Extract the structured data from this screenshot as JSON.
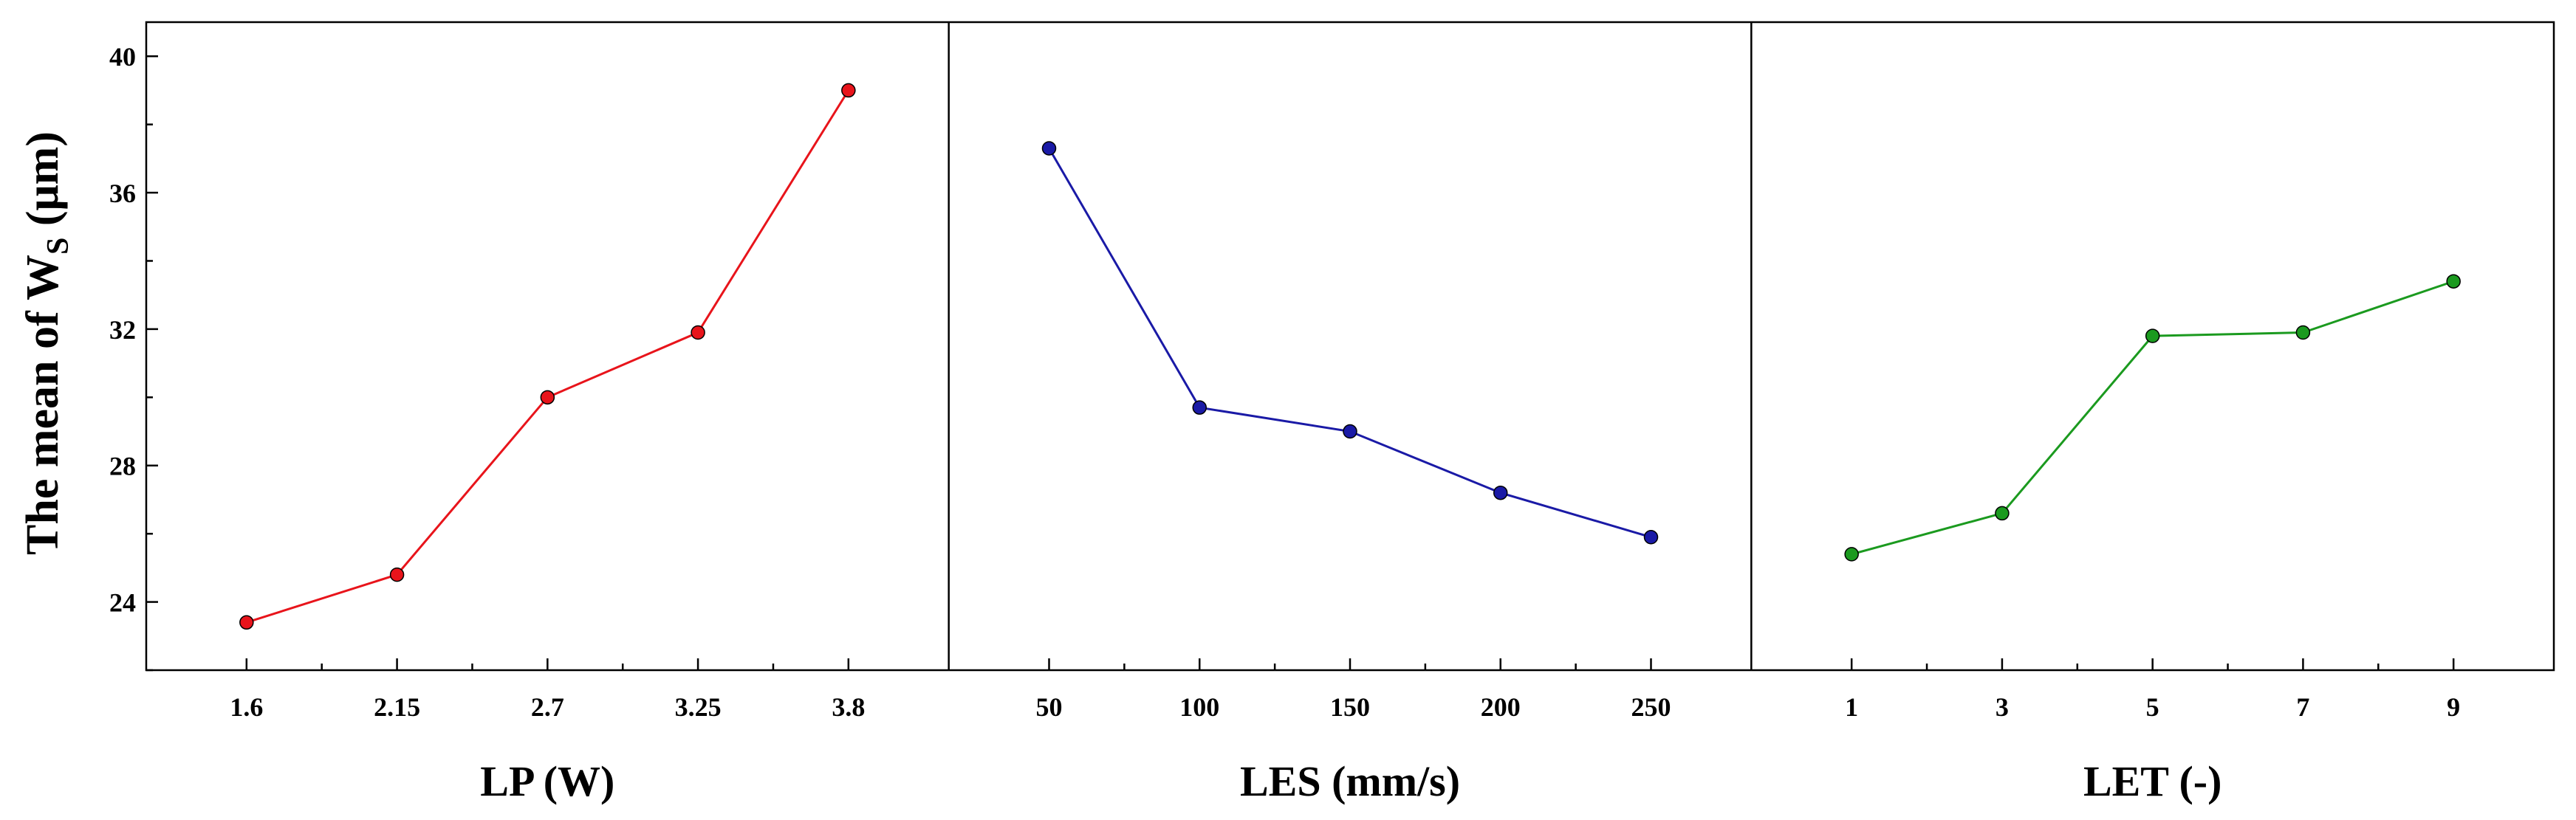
{
  "chart_data": {
    "type": "line",
    "ylabel": "The mean of W",
    "ylabel_subscript": "S",
    "ylabel_unit": " (μm)",
    "ylim": [
      22,
      41
    ],
    "yticks": [
      24,
      28,
      32,
      36,
      40
    ],
    "panels": [
      {
        "name": "LP",
        "xlabel": "LP (W)",
        "categories": [
          "1.6",
          "2.15",
          "2.7",
          "3.25",
          "3.8"
        ],
        "values": [
          23.4,
          24.8,
          30.0,
          31.9,
          39.0
        ],
        "color": "#e8141b"
      },
      {
        "name": "LES",
        "xlabel": "LES (mm/s)",
        "categories": [
          "50",
          "100",
          "150",
          "200",
          "250"
        ],
        "values": [
          37.3,
          29.7,
          29.0,
          27.2,
          25.9
        ],
        "color": "#1a1aa6"
      },
      {
        "name": "LET",
        "xlabel": "LET (-)",
        "categories": [
          "1",
          "3",
          "5",
          "7",
          "9"
        ],
        "values": [
          25.4,
          26.6,
          31.8,
          31.9,
          33.4
        ],
        "color": "#1b9a1f"
      }
    ]
  }
}
